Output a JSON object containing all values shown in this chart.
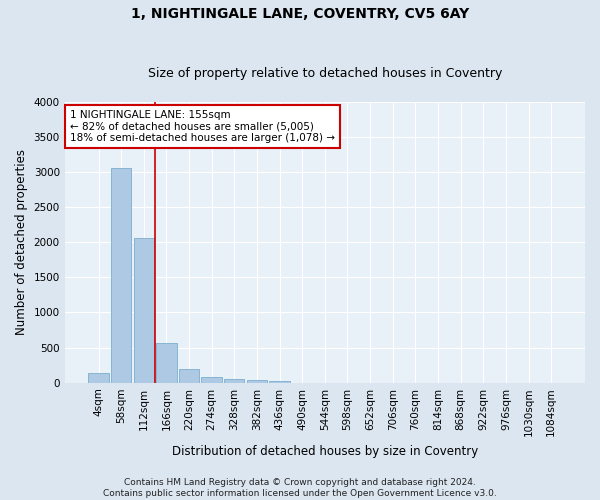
{
  "title": "1, NIGHTINGALE LANE, COVENTRY, CV5 6AY",
  "subtitle": "Size of property relative to detached houses in Coventry",
  "xlabel": "Distribution of detached houses by size in Coventry",
  "ylabel": "Number of detached properties",
  "bar_labels": [
    "4sqm",
    "58sqm",
    "112sqm",
    "166sqm",
    "220sqm",
    "274sqm",
    "328sqm",
    "382sqm",
    "436sqm",
    "490sqm",
    "544sqm",
    "598sqm",
    "652sqm",
    "706sqm",
    "760sqm",
    "814sqm",
    "868sqm",
    "922sqm",
    "976sqm",
    "1030sqm",
    "1084sqm"
  ],
  "bar_values": [
    140,
    3060,
    2060,
    560,
    200,
    80,
    55,
    40,
    30,
    0,
    0,
    0,
    0,
    0,
    0,
    0,
    0,
    0,
    0,
    0,
    0
  ],
  "bar_color": "#aec9e4",
  "bar_edge_color": "#7aaece",
  "vline_color": "#cc0000",
  "vline_position": 2.5,
  "ylim": [
    0,
    4000
  ],
  "yticks": [
    0,
    500,
    1000,
    1500,
    2000,
    2500,
    3000,
    3500,
    4000
  ],
  "annotation_text": "1 NIGHTINGALE LANE: 155sqm\n← 82% of detached houses are smaller (5,005)\n18% of semi-detached houses are larger (1,078) →",
  "annotation_box_color": "#ffffff",
  "annotation_box_edge": "#cc0000",
  "footer": "Contains HM Land Registry data © Crown copyright and database right 2024.\nContains public sector information licensed under the Open Government Licence v3.0.",
  "bg_color": "#dce6f0",
  "plot_bg_color": "#e8f0f8",
  "grid_color": "#ffffff",
  "title_fontsize": 10,
  "subtitle_fontsize": 9,
  "axis_label_fontsize": 8.5,
  "tick_fontsize": 7.5,
  "footer_fontsize": 6.5,
  "annot_fontsize": 7.5
}
